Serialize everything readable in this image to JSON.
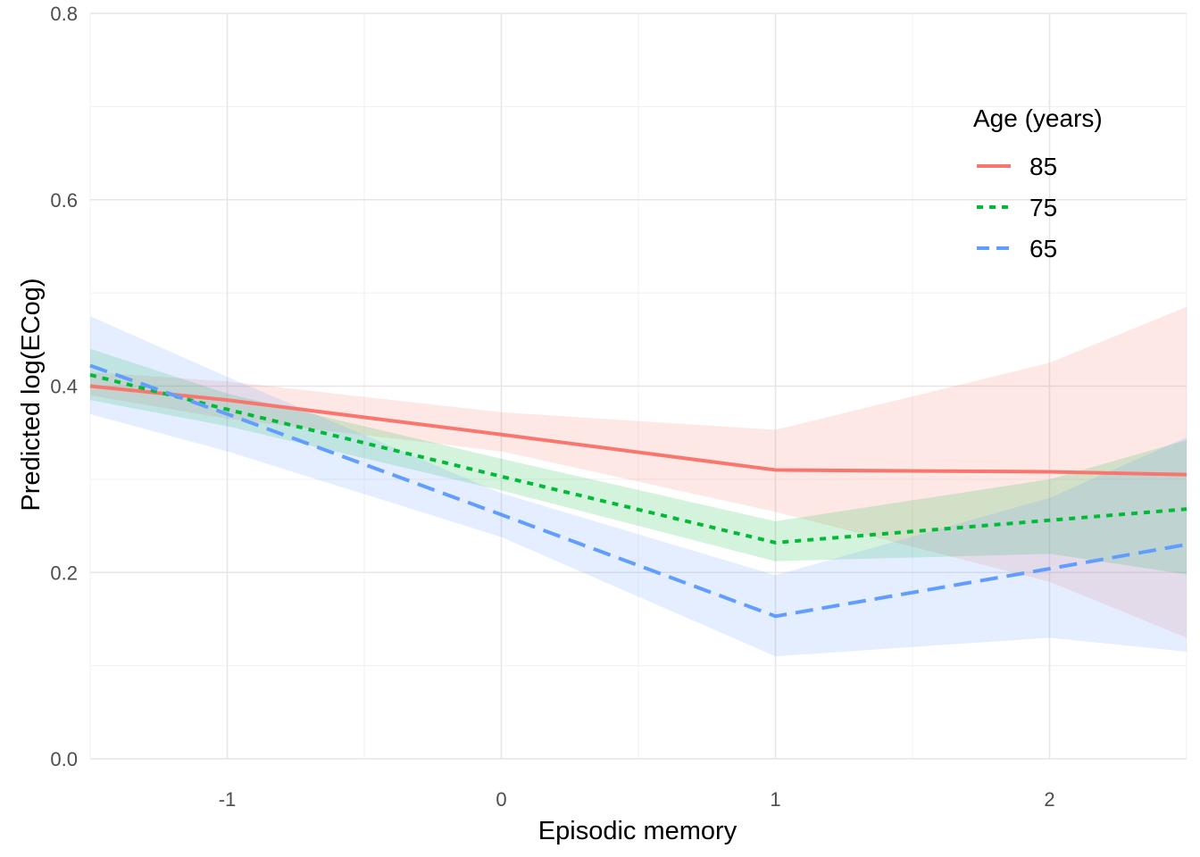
{
  "chart_data": {
    "type": "line",
    "title": "",
    "xlabel": "Episodic memory",
    "ylabel": "Predicted log(ECog)",
    "xlim": [
      -1.5,
      2.5
    ],
    "ylim": [
      0.0,
      0.8
    ],
    "x_ticks": [
      -1,
      0,
      1,
      2
    ],
    "y_ticks": [
      0.0,
      0.2,
      0.4,
      0.6,
      0.8
    ],
    "x_tick_labels": [
      "-1",
      "0",
      "1",
      "2"
    ],
    "y_tick_labels": [
      "0.0",
      "0.2",
      "0.4",
      "0.6",
      "0.8"
    ],
    "grid": true,
    "legend": {
      "title": "Age (years)",
      "placement": "top-right"
    },
    "x": [
      -1.5,
      -1,
      0,
      1,
      2,
      2.5
    ],
    "series": [
      {
        "name": "85",
        "color": "#F8766D",
        "dash": "solid",
        "values": [
          0.4,
          0.385,
          0.348,
          0.31,
          0.308,
          0.305
        ],
        "lower": [
          0.39,
          0.365,
          0.33,
          0.265,
          0.19,
          0.13
        ],
        "upper": [
          0.415,
          0.405,
          0.372,
          0.353,
          0.425,
          0.485
        ]
      },
      {
        "name": "75",
        "color": "#00BA38",
        "dash": "dotted",
        "values": [
          0.412,
          0.375,
          0.303,
          0.232,
          0.256,
          0.268
        ],
        "lower": [
          0.385,
          0.357,
          0.288,
          0.212,
          0.22,
          0.198
        ],
        "upper": [
          0.44,
          0.392,
          0.322,
          0.255,
          0.3,
          0.342
        ]
      },
      {
        "name": "65",
        "color": "#619CFF",
        "dash": "dashed",
        "values": [
          0.422,
          0.37,
          0.262,
          0.153,
          0.204,
          0.23
        ],
        "lower": [
          0.37,
          0.33,
          0.238,
          0.11,
          0.13,
          0.115
        ],
        "upper": [
          0.475,
          0.41,
          0.285,
          0.197,
          0.28,
          0.345
        ]
      }
    ]
  }
}
